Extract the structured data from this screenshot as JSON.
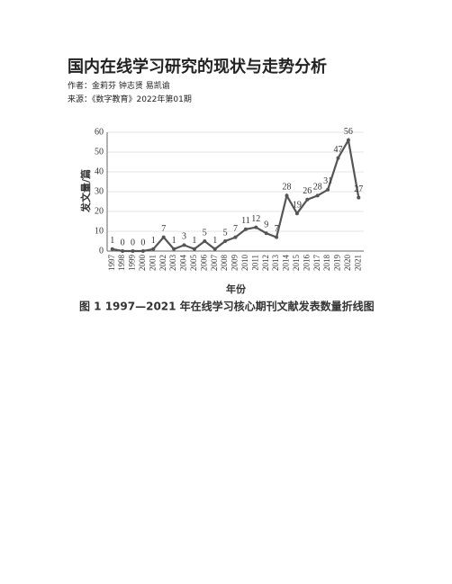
{
  "title": "国内在线学习研究的现状与走势分析",
  "author": "作者：金莉芬 钟志贤 易凯谕",
  "source": "来源：《数字教育》2022年第01期",
  "chart_data": {
    "type": "line",
    "caption": "图 1    1997—2021 年在线学习核心期刊文献发表数量折线图",
    "x_label": "年份",
    "y_label": "发文量/篇",
    "categories": [
      "1997",
      "1998",
      "1999",
      "2000",
      "2001",
      "2002",
      "2003",
      "2004",
      "2005",
      "2006",
      "2007",
      "2008",
      "2009",
      "2010",
      "2011",
      "2012",
      "2013",
      "2014",
      "2015",
      "2016",
      "2017",
      "2018",
      "2019",
      "2020",
      "2021"
    ],
    "values": [
      1,
      0,
      0,
      0,
      1,
      7,
      1,
      3,
      1,
      5,
      1,
      5,
      7,
      11,
      12,
      9,
      7,
      28,
      19,
      26,
      28,
      31,
      47,
      56,
      27
    ],
    "color": "#555555",
    "ylim": [
      0,
      60
    ],
    "yticks": [
      0,
      10,
      20,
      30,
      40,
      50,
      60
    ],
    "grid": true
  }
}
